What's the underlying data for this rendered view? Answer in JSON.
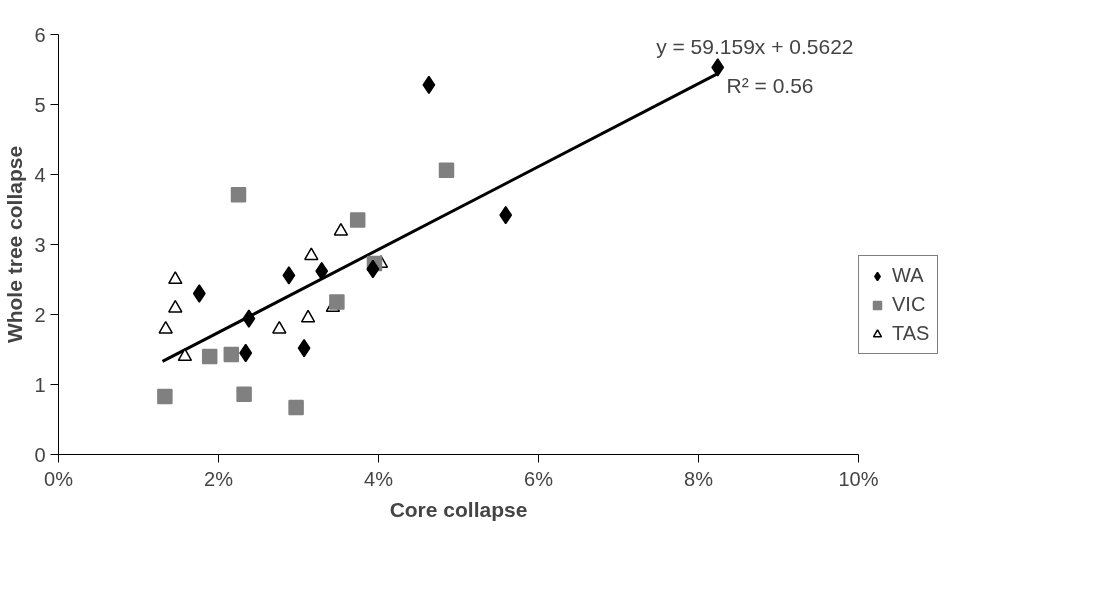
{
  "chart_data": {
    "type": "scatter",
    "xlabel": "Core collapse",
    "ylabel": "Whole tree collapse",
    "annotations": [
      "y = 59.159x + 0.5622",
      "R² = 0.56"
    ],
    "xlim": [
      0,
      0.1
    ],
    "ylim": [
      0,
      6
    ],
    "xticks": [
      {
        "value": 0,
        "label": "0%"
      },
      {
        "value": 0.02,
        "label": "2%"
      },
      {
        "value": 0.04,
        "label": "4%"
      },
      {
        "value": 0.06,
        "label": "6%"
      },
      {
        "value": 0.08,
        "label": "8%"
      },
      {
        "value": 0.1,
        "label": "10%"
      }
    ],
    "yticks": [
      0,
      1,
      2,
      3,
      4,
      5,
      6
    ],
    "grid": false,
    "legend": "right",
    "series": [
      {
        "name": "WA",
        "color": "#000000",
        "marker": "diamond",
        "x": [
          0.0176,
          0.0238,
          0.0234,
          0.0288,
          0.0329,
          0.0307,
          0.0393,
          0.0463,
          0.0559,
          0.0824
        ],
        "values": [
          2.3,
          1.94,
          1.45,
          2.56,
          2.62,
          1.52,
          2.65,
          5.28,
          3.42,
          5.53
        ]
      },
      {
        "name": "VIC",
        "color": "#808080",
        "marker": "square",
        "x": [
          0.0225,
          0.0374,
          0.0395,
          0.0348,
          0.0189,
          0.0216,
          0.0133,
          0.0232,
          0.0297,
          0.0485
        ],
        "values": [
          3.71,
          3.35,
          2.73,
          2.18,
          1.4,
          1.43,
          0.83,
          0.86,
          0.67,
          4.06
        ]
      },
      {
        "name": "TAS",
        "color": "#000000",
        "marker": "triangle",
        "x": [
          0.0146,
          0.0146,
          0.0134,
          0.0158,
          0.0353,
          0.0316,
          0.0403,
          0.0312,
          0.0276,
          0.0343
        ],
        "values": [
          2.5,
          2.09,
          1.79,
          1.4,
          3.19,
          2.84,
          2.73,
          1.95,
          1.79,
          2.1
        ]
      },
      {
        "type": "line",
        "color": "#000000",
        "line_style": "solid",
        "marker": "none",
        "x": [
          0.013,
          0.0824
        ],
        "values": [
          1.33,
          5.44
        ]
      }
    ]
  }
}
